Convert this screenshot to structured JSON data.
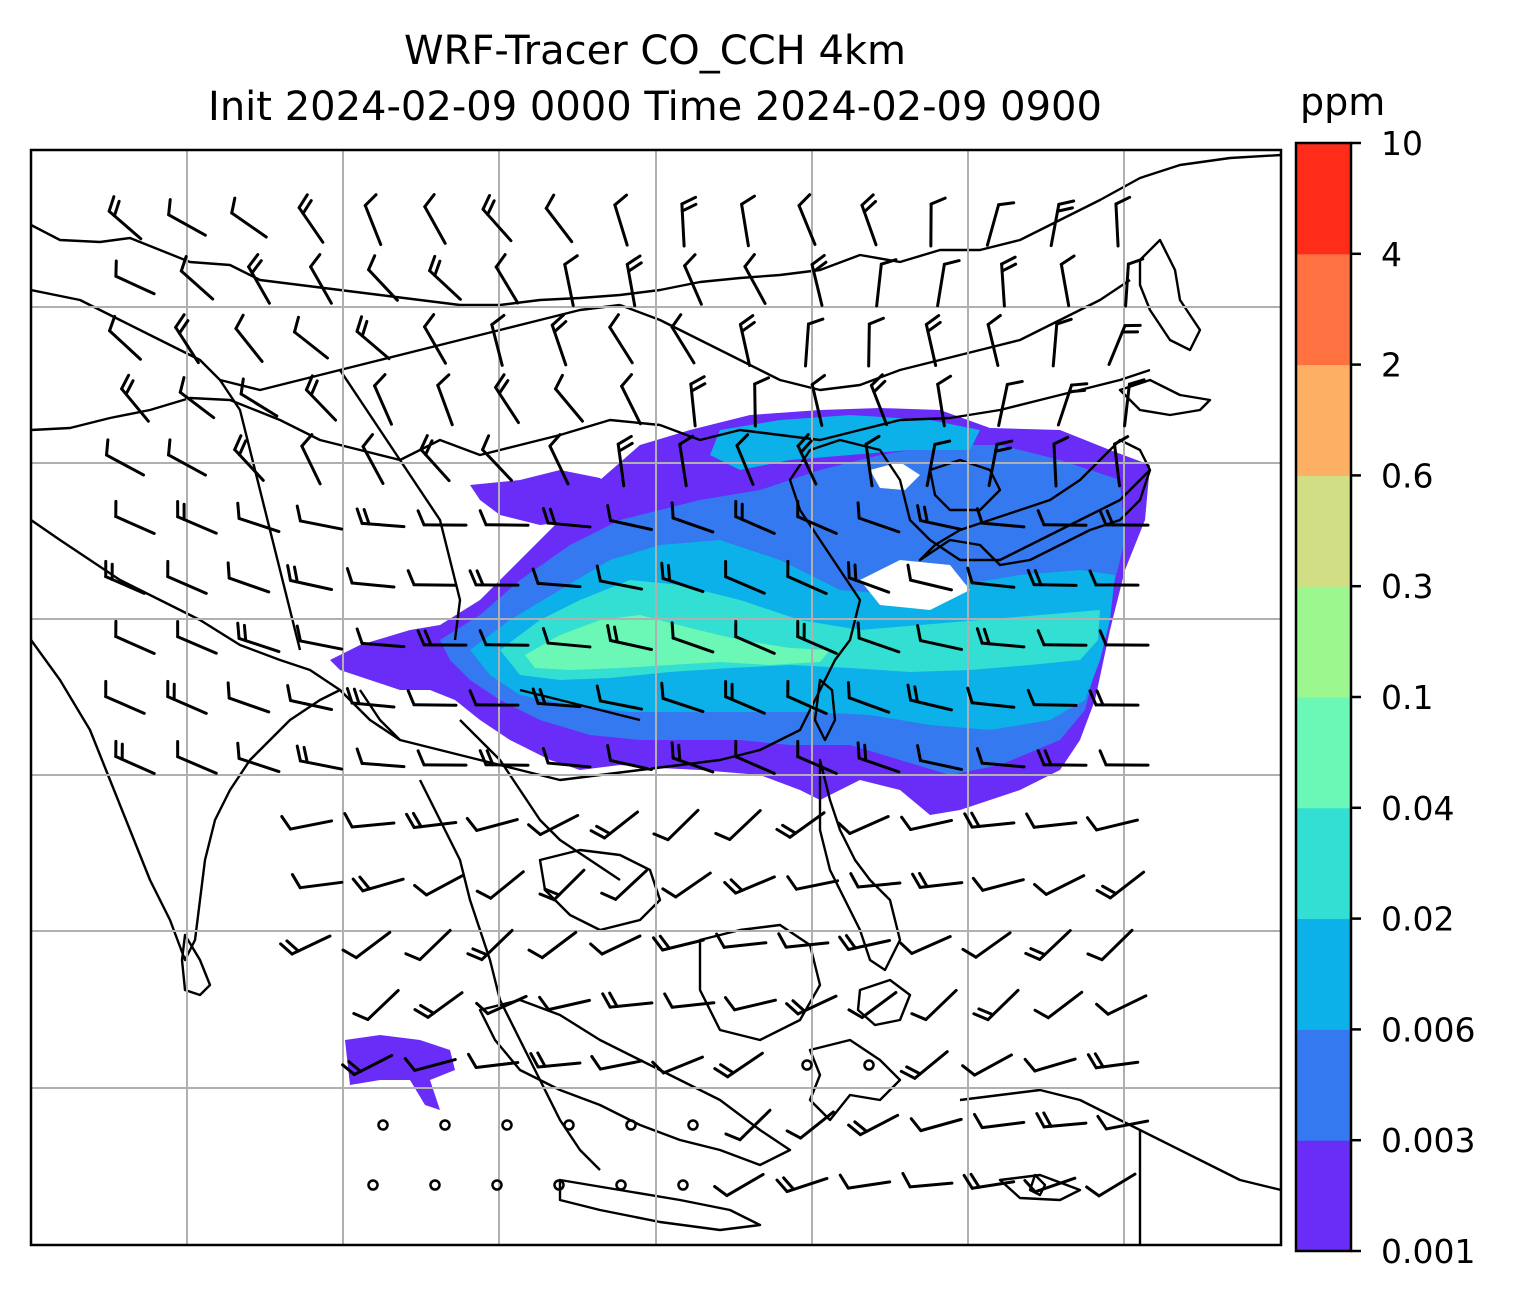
{
  "title_line1": "WRF-Tracer CO_CCH 4km",
  "title_line2": "Init 2024-02-09 0000 Time 2024-02-09 0900",
  "colorbar": {
    "unit": "ppm",
    "levels": [
      "0.001",
      "0.003",
      "0.006",
      "0.02",
      "0.04",
      "0.1",
      "0.3",
      "0.6",
      "2",
      "4",
      "10"
    ],
    "colors": [
      "#6a2cf7",
      "#3579f0",
      "#0bb1e8",
      "#32dfd2",
      "#6bf7b6",
      "#9cf78f",
      "#d2de84",
      "#fdb064",
      "#ff7140",
      "#ff2c1a"
    ]
  },
  "map": {
    "gridlines": "on",
    "plume_colors": {
      "outer": "#6a2cf7",
      "mid": "#3579f0",
      "inner": "#0bb1e8",
      "core": "#32dfd2",
      "peak": "#6bf7b6"
    },
    "overlays": [
      "coastlines",
      "country-borders",
      "wind-barbs"
    ]
  }
}
